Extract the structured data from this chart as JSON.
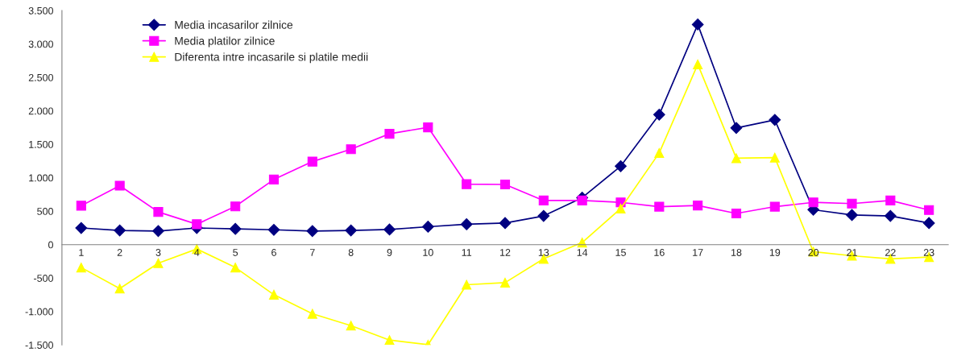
{
  "chart_data": {
    "type": "line",
    "categories": [
      "1",
      "2",
      "3",
      "4",
      "5",
      "6",
      "7",
      "8",
      "9",
      "10",
      "11",
      "12",
      "13",
      "14",
      "15",
      "16",
      "17",
      "18",
      "19",
      "20",
      "21",
      "22",
      "23"
    ],
    "series": [
      {
        "name": "Media incasarilor zilnice",
        "color": "#000080",
        "marker": "diamond",
        "values": [
          249,
          212,
          203,
          249,
          235,
          222,
          203,
          212,
          226,
          268,
          305,
          323,
          429,
          702,
          1173,
          1944,
          3292,
          1745,
          1865,
          522,
          443,
          429,
          323
        ]
      },
      {
        "name": "Media platilor zilnice",
        "color": "#ff00ff",
        "marker": "square",
        "values": [
          582,
          882,
          489,
          305,
          572,
          974,
          1242,
          1427,
          1657,
          1754,
          905,
          900,
          660,
          660,
          632,
          568,
          586,
          466,
          568,
          632,
          614,
          660,
          517
        ]
      },
      {
        "name": "Diferenta intre incasarile si platile medii",
        "color": "#ffff00",
        "marker": "triangle",
        "values": [
          -342,
          -656,
          -277,
          -65,
          -342,
          -748,
          -1034,
          -1210,
          -1427,
          -1496,
          -600,
          -568,
          -212,
          32,
          540,
          1371,
          2696,
          1293,
          1302,
          -106,
          -166,
          -212,
          -185
        ]
      }
    ],
    "ylim": [
      -1500,
      3500
    ],
    "yticks": [
      {
        "value": -1500,
        "label": "-1.500"
      },
      {
        "value": -1000,
        "label": "-1.000"
      },
      {
        "value": -500,
        "label": "-500"
      },
      {
        "value": 0,
        "label": "0"
      },
      {
        "value": 500,
        "label": "500"
      },
      {
        "value": 1000,
        "label": "1.000"
      },
      {
        "value": 1500,
        "label": "1.500"
      },
      {
        "value": 2000,
        "label": "2.000"
      },
      {
        "value": 2500,
        "label": "2.500"
      },
      {
        "value": 3000,
        "label": "3.000"
      },
      {
        "value": 3500,
        "label": "3.500"
      }
    ],
    "grid": false,
    "legend": "top left"
  }
}
